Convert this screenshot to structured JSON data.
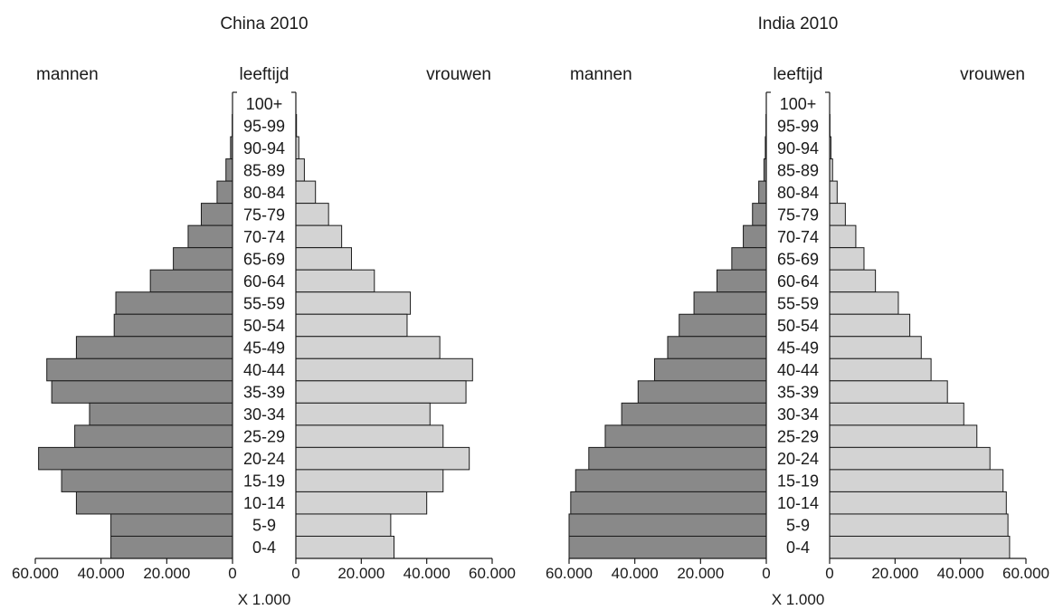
{
  "colors": {
    "male_fill": "#898989",
    "female_fill": "#d3d3d3",
    "stroke": "#1a1a1a"
  },
  "labels": {
    "male": "mannen",
    "age": "leeftijd",
    "female": "vrouwen",
    "unit": "X 1.000"
  },
  "chart_data": [
    {
      "type": "bar",
      "title": "China 2010",
      "orientation": "population-pyramid",
      "age_groups": [
        "100+",
        "95-99",
        "90-94",
        "85-89",
        "80-84",
        "75-79",
        "70-74",
        "65-69",
        "60-64",
        "55-59",
        "50-54",
        "45-49",
        "40-44",
        "35-39",
        "30-34",
        "25-29",
        "20-24",
        "15-19",
        "10-14",
        "5-9",
        "0-4"
      ],
      "series": [
        {
          "name": "mannen",
          "values": [
            0,
            100,
            600,
            2000,
            4700,
            9500,
            13500,
            18000,
            25000,
            35500,
            36000,
            47500,
            56500,
            55000,
            43500,
            48000,
            59000,
            52000,
            47500,
            37000,
            37000
          ]
        },
        {
          "name": "vrouwen",
          "values": [
            0,
            200,
            900,
            2600,
            6000,
            10000,
            14000,
            17000,
            24000,
            35000,
            34000,
            44000,
            54000,
            52000,
            41000,
            45000,
            53000,
            45000,
            40000,
            29000,
            30000
          ]
        }
      ],
      "x_range": [
        0,
        60000
      ],
      "x_ticks": [
        "60.000",
        "40.000",
        "20.000",
        "0",
        "0",
        "20.000",
        "40.000",
        "60.000"
      ],
      "x_unit": "X 1.000"
    },
    {
      "type": "bar",
      "title": "India 2010",
      "orientation": "population-pyramid",
      "age_groups": [
        "100+",
        "95-99",
        "90-94",
        "85-89",
        "80-84",
        "75-79",
        "70-74",
        "65-69",
        "60-64",
        "55-59",
        "50-54",
        "45-49",
        "40-44",
        "35-39",
        "30-34",
        "25-29",
        "20-24",
        "15-19",
        "10-14",
        "5-9",
        "0-4"
      ],
      "series": [
        {
          "name": "mannen",
          "values": [
            0,
            100,
            300,
            700,
            2300,
            4200,
            7000,
            10500,
            15000,
            22000,
            26500,
            30000,
            34000,
            39000,
            44000,
            49000,
            54000,
            58000,
            59500,
            60000,
            60000
          ]
        },
        {
          "name": "vrouwen",
          "values": [
            0,
            100,
            400,
            900,
            2300,
            4800,
            8000,
            10500,
            14000,
            21000,
            24500,
            28000,
            31000,
            36000,
            41000,
            45000,
            49000,
            53000,
            54000,
            54500,
            55000
          ]
        }
      ],
      "x_range": [
        0,
        60000
      ],
      "x_ticks": [
        "60.000",
        "40.000",
        "20.000",
        "0",
        "0",
        "20.000",
        "40.000",
        "60.000"
      ],
      "x_unit": "X 1.000"
    }
  ]
}
